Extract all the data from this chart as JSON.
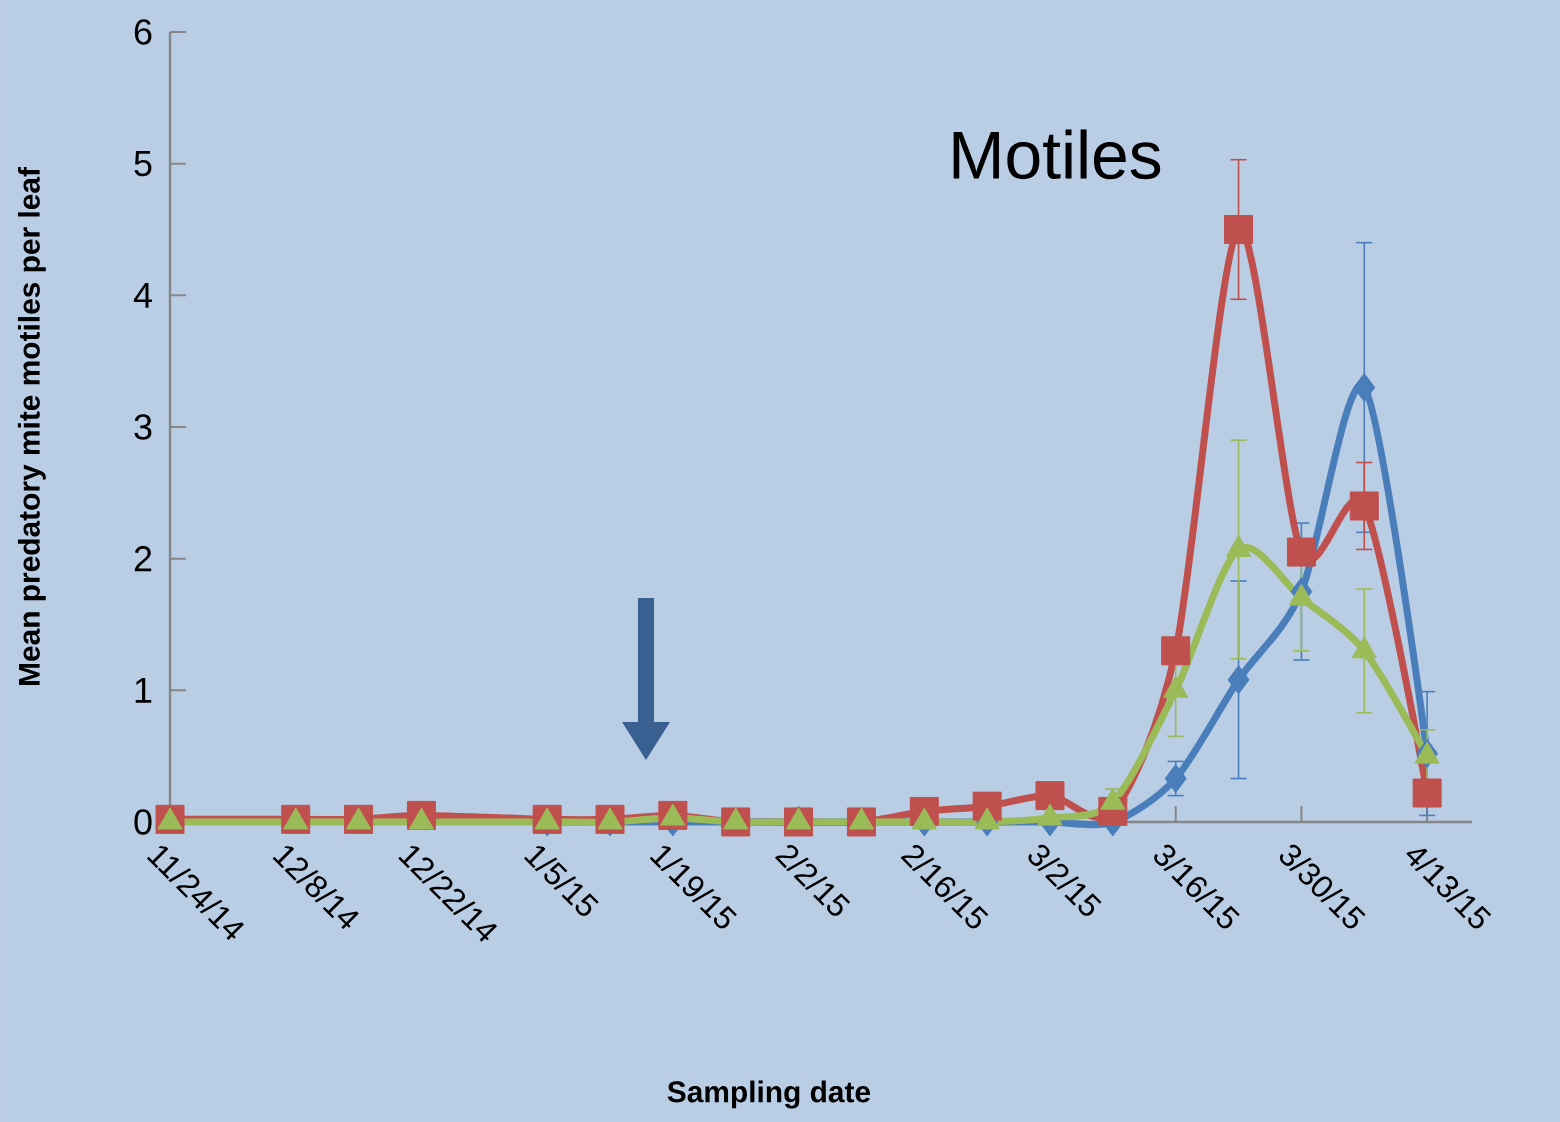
{
  "chart_data": {
    "type": "line",
    "title": "Motiles",
    "xlabel": "Sampling date",
    "ylabel": "Mean predatory mite motiles per leaf",
    "x": [
      "2014-11-24",
      "2014-12-08",
      "2014-12-15",
      "2014-12-22",
      "2015-01-05",
      "2015-01-12",
      "2015-01-19",
      "2015-01-26",
      "2015-02-02",
      "2015-02-09",
      "2015-02-16",
      "2015-02-23",
      "2015-03-02",
      "2015-03-09",
      "2015-03-16",
      "2015-03-23",
      "2015-03-30",
      "2015-04-06",
      "2015-04-13"
    ],
    "series": [
      {
        "color": "#4a7ebb",
        "marker": "diamond",
        "values": [
          null,
          null,
          null,
          null,
          0,
          0,
          0,
          0,
          0,
          0,
          0,
          0,
          0,
          0,
          0.33,
          1.08,
          1.75,
          3.3,
          0.52
        ],
        "errors": [
          null,
          null,
          null,
          null,
          null,
          null,
          null,
          null,
          null,
          null,
          null,
          null,
          null,
          null,
          0.13,
          0.75,
          0.52,
          1.1,
          0.47
        ]
      },
      {
        "color": "#c0504d",
        "marker": "square",
        "values": [
          0.02,
          0.02,
          0.02,
          0.05,
          0.02,
          0.02,
          0.05,
          0,
          0,
          0,
          0.08,
          0.12,
          0.2,
          0.08,
          1.3,
          4.5,
          2.05,
          2.4,
          0.22
        ],
        "errors": [
          null,
          null,
          null,
          null,
          null,
          null,
          null,
          null,
          null,
          null,
          null,
          null,
          null,
          null,
          null,
          0.53,
          null,
          0.33,
          null
        ]
      },
      {
        "color": "#9bbb59",
        "marker": "triangle",
        "values": [
          0,
          0,
          0,
          0,
          0,
          0,
          0.03,
          0,
          0,
          0,
          0,
          0,
          0.03,
          0.15,
          1.0,
          2.07,
          1.7,
          1.3,
          0.5
        ],
        "errors": [
          null,
          null,
          null,
          null,
          null,
          null,
          null,
          null,
          null,
          null,
          null,
          null,
          null,
          0.1,
          0.35,
          0.83,
          0.4,
          0.47,
          0.2
        ]
      }
    ],
    "xlim": [
      "2014-11-24",
      "2015-04-18"
    ],
    "xticks": [
      {
        "value": "2014-11-24",
        "label": "11/24/14"
      },
      {
        "value": "2014-12-08",
        "label": "12/8/14"
      },
      {
        "value": "2014-12-22",
        "label": "12/22/14"
      },
      {
        "value": "2015-01-05",
        "label": "1/5/15"
      },
      {
        "value": "2015-01-19",
        "label": "1/19/15"
      },
      {
        "value": "2015-02-02",
        "label": "2/2/15"
      },
      {
        "value": "2015-02-16",
        "label": "2/16/15"
      },
      {
        "value": "2015-03-02",
        "label": "3/2/15"
      },
      {
        "value": "2015-03-16",
        "label": "3/16/15"
      },
      {
        "value": "2015-03-30",
        "label": "3/30/15"
      },
      {
        "value": "2015-04-13",
        "label": "4/13/15"
      }
    ],
    "ylim": [
      0,
      6
    ],
    "yticks": [
      0,
      1,
      2,
      3,
      4,
      5,
      6
    ],
    "grid": false,
    "line_style": "solid"
  }
}
